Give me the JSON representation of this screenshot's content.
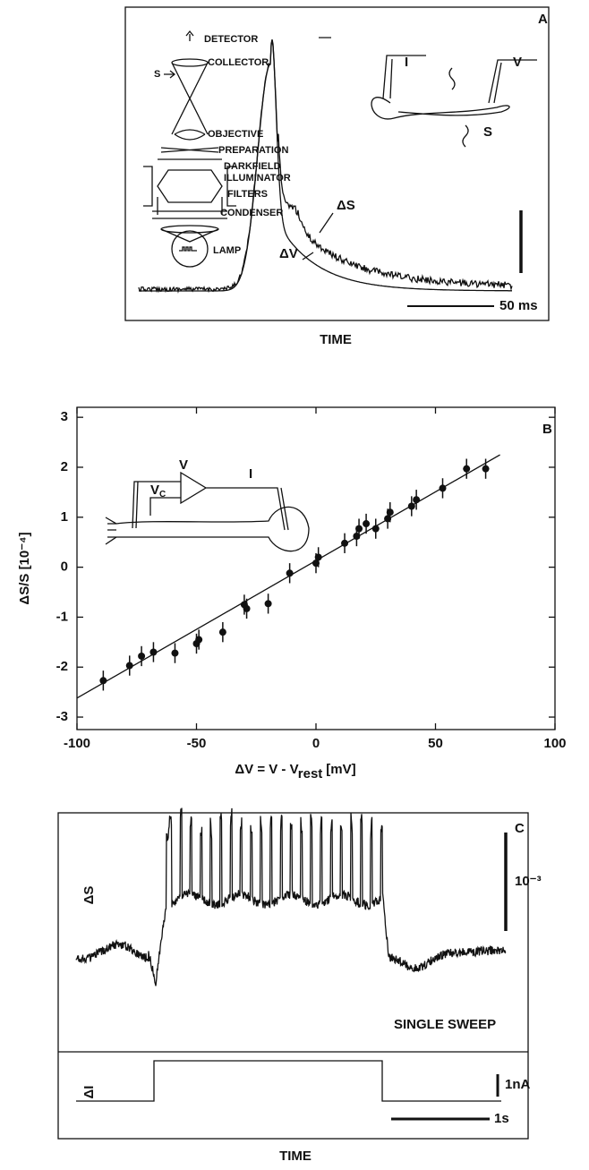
{
  "chart_data": [
    {
      "type": "trace",
      "panel": "A",
      "x_label": "TIME",
      "apparatus": [
        "DETECTOR",
        "COLLECTOR",
        "S",
        "OBJECTIVE",
        "PREPARATION",
        "DARKFIELD",
        "ILLUMINATOR",
        "FILTERS",
        "CONDENSER",
        "LAMP"
      ],
      "inset": [
        "I",
        "V",
        "S"
      ],
      "traces": [
        "ΔS",
        "ΔV"
      ],
      "scale_bar": "50 ms"
    },
    {
      "type": "scatter",
      "panel": "B",
      "x_label": {
        "main": "ΔV = V - V",
        "sub": "rest",
        "unit": "[mV]"
      },
      "y_label": "ΔS/S [10⁻⁴]",
      "inset": {
        "v": "V",
        "vc": "V",
        "vc_sub": "C",
        "i": "I"
      },
      "x": [
        -89,
        -78,
        -73,
        -68,
        -59,
        -50,
        -49,
        -39,
        -30,
        -29,
        -20,
        -11,
        0,
        1,
        12,
        17,
        18,
        21,
        25,
        30,
        31,
        40,
        42,
        53,
        63,
        71
      ],
      "values": [
        -2.27,
        -1.97,
        -1.78,
        -1.7,
        -1.72,
        -1.53,
        -1.45,
        -1.3,
        -0.75,
        -0.83,
        -0.73,
        -0.12,
        0.08,
        0.2,
        0.48,
        0.62,
        0.77,
        0.87,
        0.77,
        0.97,
        1.1,
        1.22,
        1.35,
        1.58,
        1.97,
        1.97
      ],
      "errors": [
        0.2,
        0.2,
        0.2,
        0.2,
        0.2,
        0.2,
        0.2,
        0.2,
        0.2,
        0.2,
        0.2,
        0.2,
        0.2,
        0.2,
        0.2,
        0.2,
        0.2,
        0.2,
        0.2,
        0.2,
        0.2,
        0.2,
        0.2,
        0.2,
        0.2,
        0.2
      ],
      "fit": {
        "x": [
          -100,
          77
        ],
        "y": [
          -2.62,
          2.25
        ]
      },
      "color": "#111111",
      "xlim": [
        -100,
        100
      ],
      "xticks": [
        -100,
        -50,
        0,
        50,
        100
      ],
      "ylim": [
        -3.25,
        3.2
      ],
      "yticks": [
        -3,
        -2,
        -1,
        0,
        1,
        2,
        3
      ]
    },
    {
      "type": "trace",
      "panel": "C",
      "x_label": "TIME",
      "traces": [
        "ΔS",
        "ΔI"
      ],
      "scale_bars": [
        "10⁻³",
        "1nA",
        "1s"
      ],
      "note": "SINGLE SWEEP"
    }
  ]
}
